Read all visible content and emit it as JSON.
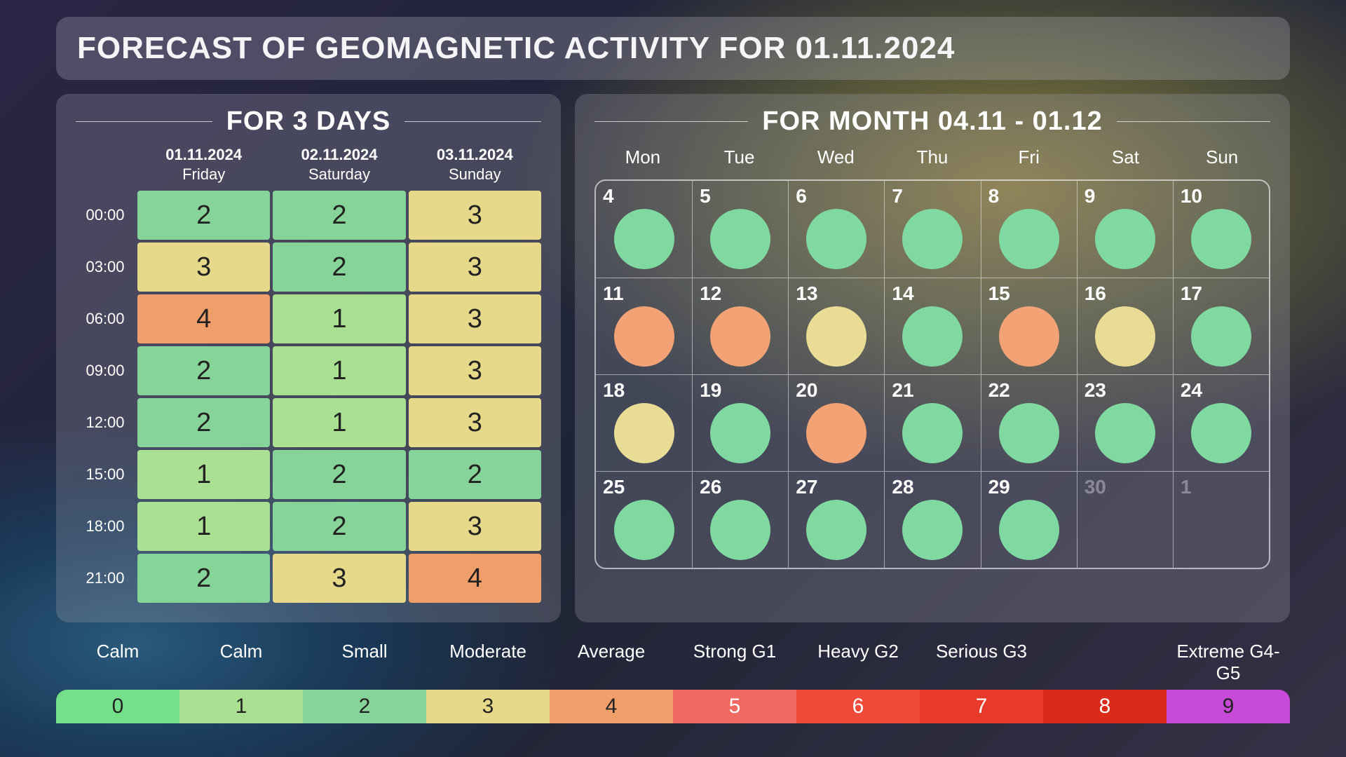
{
  "title": "FORECAST OF GEOMAGNETIC ACTIVITY FOR 01.11.2024",
  "colors": {
    "level0": "#75e08c",
    "level1": "#a9e091",
    "level2": "#87d49a",
    "level3": "#e7d98a",
    "level4": "#f19f6a",
    "level5": "#f06a63",
    "level6": "#ef4a3a",
    "level7": "#e83a2a",
    "level8": "#d92a1a",
    "level9": "#c84ad8",
    "dot_green": "#7fd9a0",
    "dot_yellow": "#e9dd95",
    "dot_orange": "#f2a275"
  },
  "threeDay": {
    "heading": "FOR 3 DAYS",
    "days": [
      {
        "date": "01.11.2024",
        "dow": "Friday"
      },
      {
        "date": "02.11.2024",
        "dow": "Saturday"
      },
      {
        "date": "03.11.2024",
        "dow": "Sunday"
      }
    ],
    "hours": [
      "00:00",
      "03:00",
      "06:00",
      "09:00",
      "12:00",
      "15:00",
      "18:00",
      "21:00"
    ],
    "grid": [
      [
        2,
        2,
        3
      ],
      [
        3,
        2,
        3
      ],
      [
        4,
        1,
        3
      ],
      [
        2,
        1,
        3
      ],
      [
        2,
        1,
        3
      ],
      [
        1,
        2,
        2
      ],
      [
        1,
        2,
        3
      ],
      [
        2,
        3,
        4
      ]
    ],
    "cell_colors": [
      [
        "#87d49a",
        "#87d49a",
        "#e7d98a"
      ],
      [
        "#e7d98a",
        "#87d49a",
        "#e7d98a"
      ],
      [
        "#f19f6a",
        "#a9e091",
        "#e7d98a"
      ],
      [
        "#87d49a",
        "#a9e091",
        "#e7d98a"
      ],
      [
        "#87d49a",
        "#a9e091",
        "#e7d98a"
      ],
      [
        "#a9e091",
        "#87d49a",
        "#87d49a"
      ],
      [
        "#a9e091",
        "#87d49a",
        "#e7d98a"
      ],
      [
        "#87d49a",
        "#e7d98a",
        "#f19f6a"
      ]
    ]
  },
  "month": {
    "heading": "FOR MONTH 04.11 - 01.12",
    "weekdays": [
      "Mon",
      "Tue",
      "Wed",
      "Thu",
      "Fri",
      "Sat",
      "Sun"
    ],
    "cells": [
      [
        {
          "n": "4",
          "dot": "#7fd9a0"
        },
        {
          "n": "5",
          "dot": "#7fd9a0"
        },
        {
          "n": "6",
          "dot": "#7fd9a0"
        },
        {
          "n": "7",
          "dot": "#7fd9a0"
        },
        {
          "n": "8",
          "dot": "#7fd9a0"
        },
        {
          "n": "9",
          "dot": "#7fd9a0"
        },
        {
          "n": "10",
          "dot": "#7fd9a0"
        }
      ],
      [
        {
          "n": "11",
          "dot": "#f2a275"
        },
        {
          "n": "12",
          "dot": "#f2a275"
        },
        {
          "n": "13",
          "dot": "#e9dd95"
        },
        {
          "n": "14",
          "dot": "#7fd9a0"
        },
        {
          "n": "15",
          "dot": "#f2a275"
        },
        {
          "n": "16",
          "dot": "#e9dd95"
        },
        {
          "n": "17",
          "dot": "#7fd9a0"
        }
      ],
      [
        {
          "n": "18",
          "dot": "#e9dd95"
        },
        {
          "n": "19",
          "dot": "#7fd9a0"
        },
        {
          "n": "20",
          "dot": "#f2a275"
        },
        {
          "n": "21",
          "dot": "#7fd9a0"
        },
        {
          "n": "22",
          "dot": "#7fd9a0"
        },
        {
          "n": "23",
          "dot": "#7fd9a0"
        },
        {
          "n": "24",
          "dot": "#7fd9a0"
        }
      ],
      [
        {
          "n": "25",
          "dot": "#7fd9a0"
        },
        {
          "n": "26",
          "dot": "#7fd9a0"
        },
        {
          "n": "27",
          "dot": "#7fd9a0"
        },
        {
          "n": "28",
          "dot": "#7fd9a0"
        },
        {
          "n": "29",
          "dot": "#7fd9a0"
        },
        {
          "n": "30",
          "dim": true
        },
        {
          "n": "1",
          "dim": true
        }
      ]
    ]
  },
  "legend": {
    "labels": [
      "Calm",
      "Calm",
      "Small",
      "Moderate",
      "Average",
      "Strong G1",
      "Heavy G2",
      "Serious G3",
      "",
      "Extreme G4-G5"
    ],
    "segments": [
      {
        "n": "0",
        "c": "#75e08c"
      },
      {
        "n": "1",
        "c": "#a9e091"
      },
      {
        "n": "2",
        "c": "#87d49a"
      },
      {
        "n": "3",
        "c": "#e7d98a"
      },
      {
        "n": "4",
        "c": "#f19f6a"
      },
      {
        "n": "5",
        "c": "#f06a63"
      },
      {
        "n": "6",
        "c": "#ef4a3a"
      },
      {
        "n": "7",
        "c": "#e83a2a"
      },
      {
        "n": "8",
        "c": "#d92a1a"
      },
      {
        "n": "9",
        "c": "#c84ad8"
      }
    ]
  }
}
